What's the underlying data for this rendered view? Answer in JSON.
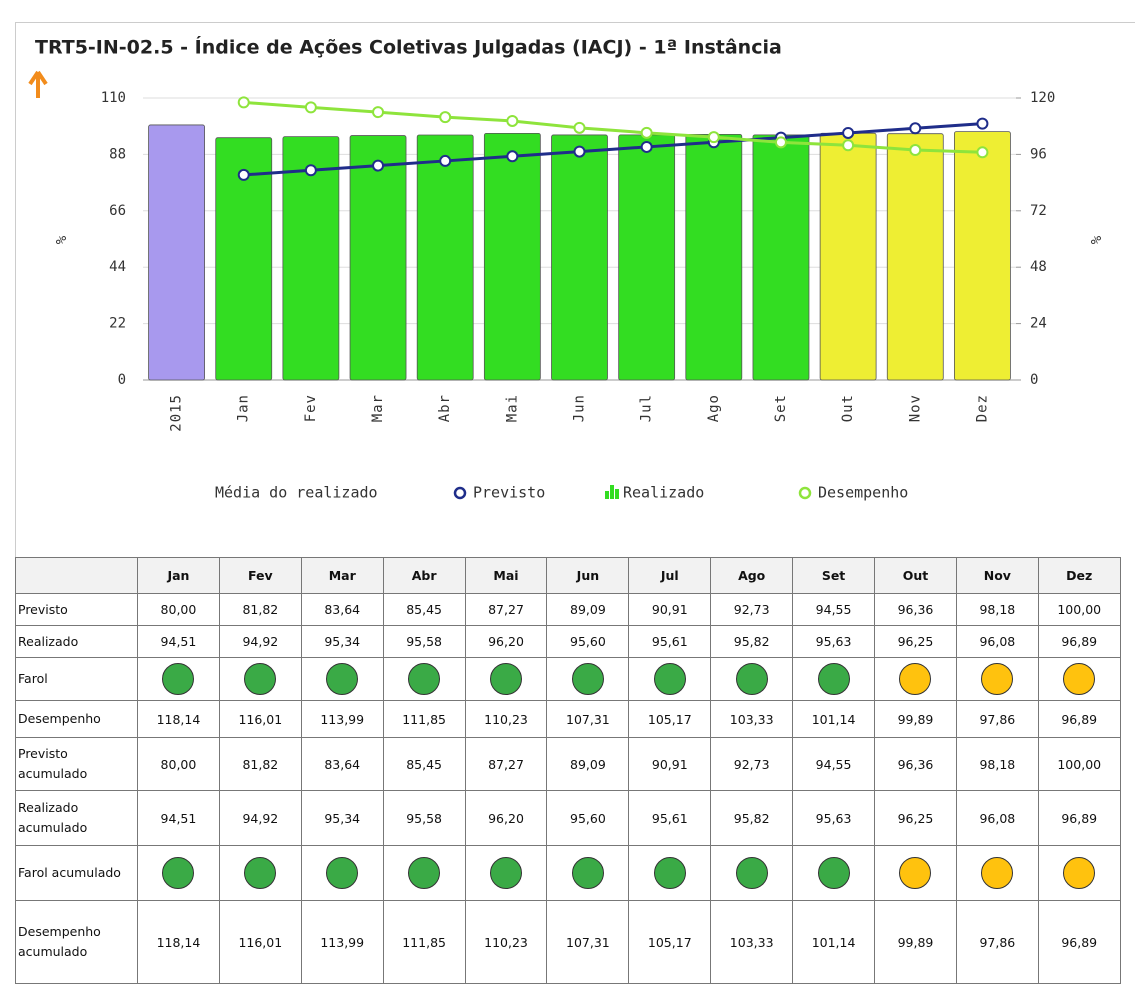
{
  "chart_data": {
    "type": "bar-line",
    "title": "TRT5-IN-02.5 - Índice de Ações Coletivas Julgadas (IACJ) - 1ª Instância",
    "categories": [
      "2015",
      "Jan",
      "Fev",
      "Mar",
      "Abr",
      "Mai",
      "Jun",
      "Jul",
      "Ago",
      "Set",
      "Out",
      "Nov",
      "Dez"
    ],
    "ylabel": "%",
    "y2label": "%",
    "ylim": [
      0,
      110
    ],
    "yticks": [
      0,
      22,
      44,
      66,
      88,
      110
    ],
    "y2lim": [
      0,
      120
    ],
    "y2ticks": [
      0,
      24,
      48,
      72,
      96,
      120
    ],
    "series": [
      {
        "name": "Média do realizado",
        "type": "bar",
        "color": "#a899ee",
        "values": [
          99.5,
          null,
          null,
          null,
          null,
          null,
          null,
          null,
          null,
          null,
          null,
          null,
          null
        ]
      },
      {
        "name": "Previsto",
        "type": "line",
        "color": "#1f2d8a",
        "values": [
          null,
          80,
          81.82,
          83.64,
          85.45,
          87.27,
          89.09,
          90.91,
          92.73,
          94.55,
          96.36,
          98.18,
          100
        ]
      },
      {
        "name": "Realizado",
        "type": "bar",
        "color": "#33dd22",
        "point_colors": [
          null,
          "#33dd22",
          "#33dd22",
          "#33dd22",
          "#33dd22",
          "#33dd22",
          "#33dd22",
          "#33dd22",
          "#33dd22",
          "#33dd22",
          "#eeee33",
          "#eeee33",
          "#eeee33"
        ],
        "values": [
          null,
          94.51,
          94.92,
          95.34,
          95.58,
          96.2,
          95.6,
          95.61,
          95.82,
          95.63,
          96.25,
          96.08,
          96.89
        ]
      },
      {
        "name": "Desempenho",
        "type": "line",
        "axis": "y2",
        "color": "#8ee43c",
        "values": [
          null,
          118.14,
          116.01,
          113.99,
          111.85,
          110.23,
          107.31,
          105.17,
          103.33,
          101.14,
          99.89,
          97.86,
          96.89
        ]
      }
    ]
  },
  "table": {
    "header": [
      "Jan",
      "Fev",
      "Mar",
      "Abr",
      "Mai",
      "Jun",
      "Jul",
      "Ago",
      "Set",
      "Out",
      "Nov",
      "Dez"
    ],
    "rows": [
      {
        "label": "Previsto",
        "cells": [
          "80,00",
          "81,82",
          "83,64",
          "85,45",
          "87,27",
          "89,09",
          "90,91",
          "92,73",
          "94,55",
          "96,36",
          "98,18",
          "100,00"
        ]
      },
      {
        "label": "Realizado",
        "cells": [
          "94,51",
          "94,92",
          "95,34",
          "95,58",
          "96,20",
          "95,60",
          "95,61",
          "95,82",
          "95,63",
          "96,25",
          "96,08",
          "96,89"
        ]
      },
      {
        "label": "Farol",
        "colors": [
          "#3aaa46",
          "#3aaa46",
          "#3aaa46",
          "#3aaa46",
          "#3aaa46",
          "#3aaa46",
          "#3aaa46",
          "#3aaa46",
          "#3aaa46",
          "#ffc20e",
          "#ffc20e",
          "#ffc20e"
        ]
      },
      {
        "label": "Desempenho",
        "cells": [
          "118,14",
          "116,01",
          "113,99",
          "111,85",
          "110,23",
          "107,31",
          "105,17",
          "103,33",
          "101,14",
          "99,89",
          "97,86",
          "96,89"
        ]
      },
      {
        "label": "Previsto acumulado",
        "cells": [
          "80,00",
          "81,82",
          "83,64",
          "85,45",
          "87,27",
          "89,09",
          "90,91",
          "92,73",
          "94,55",
          "96,36",
          "98,18",
          "100,00"
        ]
      },
      {
        "label": "Realizado acumulado",
        "cells": [
          "94,51",
          "94,92",
          "95,34",
          "95,58",
          "96,20",
          "95,60",
          "95,61",
          "95,82",
          "95,63",
          "96,25",
          "96,08",
          "96,89"
        ]
      },
      {
        "label": "Farol acumulado",
        "colors": [
          "#3aaa46",
          "#3aaa46",
          "#3aaa46",
          "#3aaa46",
          "#3aaa46",
          "#3aaa46",
          "#3aaa46",
          "#3aaa46",
          "#3aaa46",
          "#ffc20e",
          "#ffc20e",
          "#ffc20e"
        ]
      },
      {
        "label": "Desempenho acumulado",
        "cells": [
          "118,14",
          "116,01",
          "113,99",
          "111,85",
          "110,23",
          "107,31",
          "105,17",
          "103,33",
          "101,14",
          "99,89",
          "97,86",
          "96,89"
        ]
      }
    ]
  }
}
